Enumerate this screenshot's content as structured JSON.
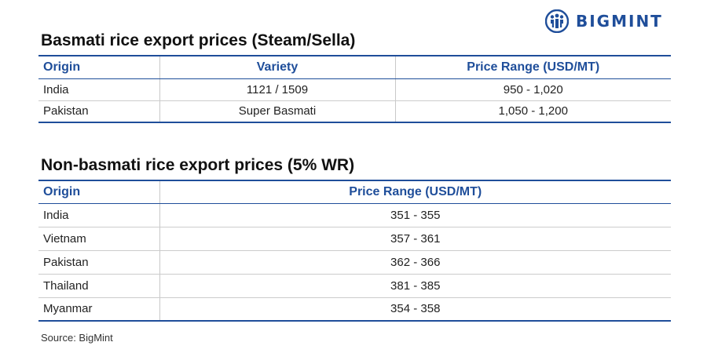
{
  "brand": {
    "name": "BIGMINT",
    "icon": "people-icon",
    "color": "#1f4e9a"
  },
  "basmati": {
    "title": "Basmati rice export prices (Steam/Sella)",
    "headers": [
      "Origin",
      "Variety",
      "Price Range (USD/MT)"
    ],
    "rows": [
      [
        "India",
        "1121 / 1509",
        "950 - 1,020"
      ],
      [
        "Pakistan",
        "Super Basmati",
        "1,050 - 1,200"
      ]
    ]
  },
  "non_basmati": {
    "title": "Non-basmati rice export prices (5% WR)",
    "headers": [
      "Origin",
      "Price Range (USD/MT)"
    ],
    "rows": [
      [
        "India",
        "351 - 355"
      ],
      [
        "Vietnam",
        "357 - 361"
      ],
      [
        "Pakistan",
        "362 - 366"
      ],
      [
        "Thailand",
        "381 - 385"
      ],
      [
        "Myanmar",
        "354 - 358"
      ]
    ]
  },
  "source": "Source: BigMint"
}
